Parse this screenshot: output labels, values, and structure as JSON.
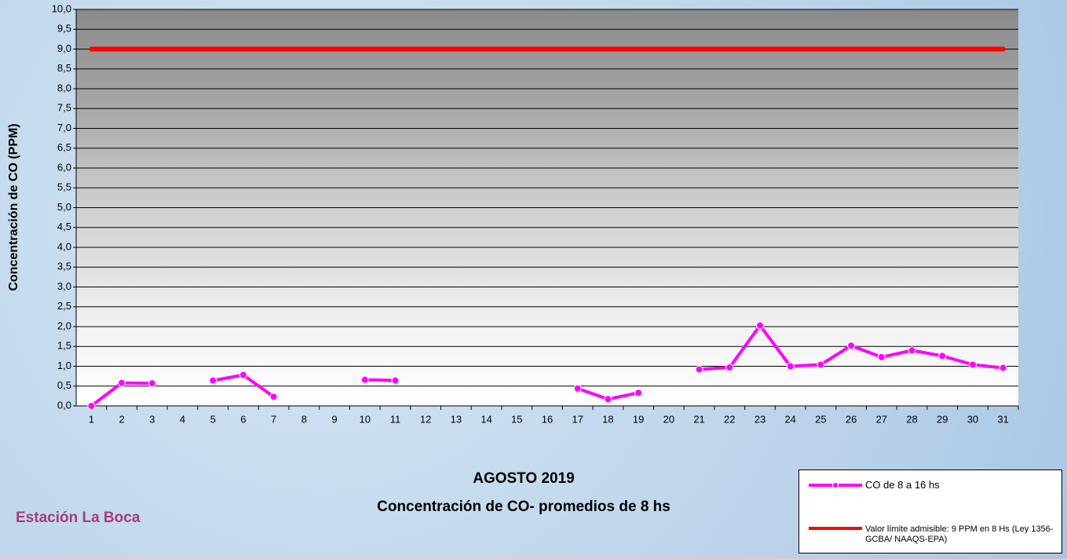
{
  "chart_data": {
    "type": "line",
    "title": "AGOSTO 2019",
    "subtitle": "Concentración de CO- promedios de 8 hs",
    "y_label": "Concentración de CO (PPM)",
    "annotation": "Estación La Boca",
    "categories": [
      1,
      2,
      3,
      4,
      5,
      6,
      7,
      8,
      9,
      10,
      11,
      12,
      13,
      14,
      15,
      16,
      17,
      18,
      19,
      20,
      21,
      22,
      23,
      24,
      25,
      26,
      27,
      28,
      29,
      30,
      31
    ],
    "series": [
      {
        "name": "CO de 8 a 16 hs",
        "color": "#ff00ff",
        "markers": true,
        "values": [
          0.0,
          0.58,
          0.57,
          null,
          0.64,
          0.78,
          0.23,
          null,
          null,
          0.66,
          0.64,
          null,
          null,
          null,
          null,
          null,
          0.44,
          0.17,
          0.33,
          null,
          0.92,
          0.97,
          2.03,
          1.0,
          1.04,
          1.52,
          1.23,
          1.4,
          1.26,
          1.04,
          0.96
        ]
      },
      {
        "name": "Valor límite admisible: 9 PPM en 8 Hs (Ley 1356-GCBA/ NAAQS-EPA)",
        "color": "#ff0000",
        "markers": false,
        "values": [
          9,
          9,
          9,
          9,
          9,
          9,
          9,
          9,
          9,
          9,
          9,
          9,
          9,
          9,
          9,
          9,
          9,
          9,
          9,
          9,
          9,
          9,
          9,
          9,
          9,
          9,
          9,
          9,
          9,
          9,
          9
        ]
      }
    ],
    "ylim": [
      0,
      10
    ],
    "yticks": [
      {
        "value": 0,
        "label": "0,0"
      },
      {
        "value": 0.5,
        "label": "0,5"
      },
      {
        "value": 1,
        "label": "1,0"
      },
      {
        "value": 1.5,
        "label": "1,5"
      },
      {
        "value": 2,
        "label": "2,0"
      },
      {
        "value": 2.5,
        "label": "2,5"
      },
      {
        "value": 3,
        "label": "3,0"
      },
      {
        "value": 3.5,
        "label": "3,5"
      },
      {
        "value": 4,
        "label": "4,0"
      },
      {
        "value": 4.5,
        "label": "4,5"
      },
      {
        "value": 5,
        "label": "5,0"
      },
      {
        "value": 5.5,
        "label": "5,5"
      },
      {
        "value": 6,
        "label": "6,0"
      },
      {
        "value": 6.5,
        "label": "6,5"
      },
      {
        "value": 7,
        "label": "7,0"
      },
      {
        "value": 7.5,
        "label": "7,5"
      },
      {
        "value": 8,
        "label": "8,0"
      },
      {
        "value": 8.5,
        "label": "8,5"
      },
      {
        "value": 9,
        "label": "9,0"
      },
      {
        "value": 9.5,
        "label": "9,5"
      },
      {
        "value": 10,
        "label": "10,0"
      }
    ],
    "grid": true
  }
}
